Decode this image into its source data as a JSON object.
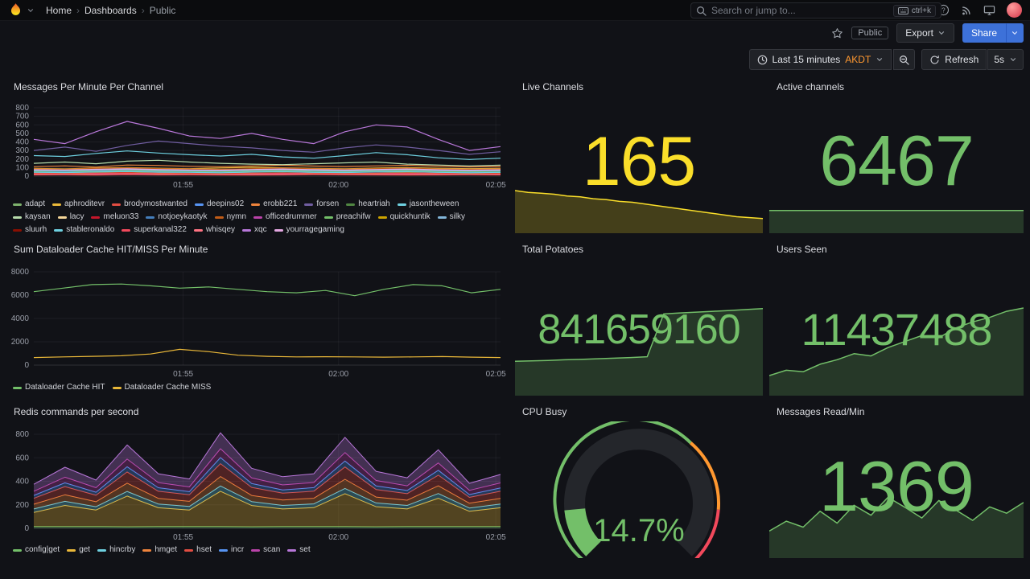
{
  "nav": {
    "breadcrumb": [
      {
        "label": "Home"
      },
      {
        "label": "Dashboards"
      },
      {
        "label": "Public"
      }
    ],
    "search": {
      "placeholder": "Search or jump to...",
      "shortcut": "ctrl+k"
    }
  },
  "actions": {
    "public_tag": "Public",
    "export": "Export",
    "share": "Share"
  },
  "controls": {
    "time_range": "Last 15 minutes",
    "timezone": "AKDT",
    "refresh": "Refresh",
    "interval": "5s"
  },
  "panels": {
    "messages": {
      "title": "Messages Per Minute Per Channel"
    },
    "live_channels": {
      "title": "Live Channels",
      "value": "165",
      "color": "#FADE2A"
    },
    "active_channels": {
      "title": "Active channels",
      "value": "6467",
      "color": "#73BF69"
    },
    "dataloader": {
      "title": "Sum Dataloader Cache HIT/MISS Per Minute"
    },
    "total_potatoes": {
      "title": "Total Potatoes",
      "value": "841659160",
      "color": "#73BF69"
    },
    "users_seen": {
      "title": "Users Seen",
      "value": "11437488",
      "color": "#73BF69"
    },
    "redis": {
      "title": "Redis commands per second"
    },
    "cpu_busy": {
      "title": "CPU Busy",
      "value": "14.7%",
      "color": "#73BF69"
    },
    "messages_read": {
      "title": "Messages Read/Min",
      "value": "1369",
      "color": "#73BF69"
    }
  },
  "chart_data": {
    "messages": {
      "type": "line",
      "ylim": [
        0,
        800
      ],
      "yticks": [
        0,
        100,
        200,
        300,
        400,
        500,
        600,
        700,
        800
      ],
      "xticks": [
        {
          "label": "01:55",
          "f": 0.32
        },
        {
          "label": "02:00",
          "f": 0.653
        },
        {
          "label": "02:05",
          "f": 0.99
        }
      ],
      "series": [
        {
          "name": "adapt",
          "color": "#7EB26D",
          "values": [
            40,
            45,
            38,
            50,
            42,
            48,
            44,
            40,
            36,
            42,
            46,
            50,
            44,
            40,
            38,
            42
          ]
        },
        {
          "name": "aphroditevr",
          "color": "#EAB839",
          "values": [
            90,
            85,
            95,
            100,
            92,
            88,
            96,
            104,
            98,
            90,
            86,
            94,
            100,
            92,
            88,
            90
          ]
        },
        {
          "name": "brodymostwanted",
          "color": "#E24D42",
          "values": [
            25,
            30,
            22,
            28,
            35,
            30,
            26,
            24,
            28,
            32,
            30,
            26,
            24,
            22,
            26,
            28
          ]
        },
        {
          "name": "deepins02",
          "color": "#5794F2",
          "values": [
            60,
            55,
            65,
            70,
            62,
            58,
            66,
            72,
            64,
            60,
            56,
            62,
            68,
            60,
            58,
            62
          ]
        },
        {
          "name": "erobb221",
          "color": "#EF843C",
          "values": [
            110,
            120,
            105,
            130,
            125,
            115,
            110,
            120,
            128,
            118,
            112,
            120,
            126,
            116,
            108,
            112
          ]
        },
        {
          "name": "forsen",
          "color": "#705DA0",
          "values": [
            300,
            340,
            290,
            360,
            410,
            380,
            350,
            330,
            300,
            280,
            330,
            365,
            340,
            300,
            255,
            285
          ]
        },
        {
          "name": "heartriah",
          "color": "#508642",
          "values": [
            15,
            18,
            14,
            20,
            16,
            18,
            15,
            14,
            16,
            18,
            20,
            17,
            15,
            14,
            16,
            15
          ]
        },
        {
          "name": "jasontheween",
          "color": "#6ED0E0",
          "values": [
            240,
            230,
            265,
            295,
            270,
            250,
            235,
            255,
            225,
            210,
            240,
            275,
            250,
            215,
            195,
            210
          ]
        },
        {
          "name": "kaysan",
          "color": "#B7DBAB",
          "values": [
            150,
            165,
            145,
            175,
            185,
            165,
            150,
            140,
            135,
            145,
            155,
            165,
            140,
            130,
            120,
            128
          ]
        },
        {
          "name": "lacy",
          "color": "#F4D598",
          "values": [
            70,
            75,
            68,
            80,
            74,
            70,
            66,
            72,
            78,
            72,
            68,
            74,
            80,
            72,
            68,
            70
          ]
        },
        {
          "name": "meluon33",
          "color": "#C4162A",
          "values": [
            35,
            32,
            38,
            42,
            36,
            34,
            30,
            36,
            40,
            34,
            32,
            36,
            40,
            34,
            30,
            32
          ]
        },
        {
          "name": "notjoeykaotyk",
          "color": "#447EBC",
          "values": [
            50,
            48,
            54,
            58,
            52,
            48,
            46,
            52,
            56,
            50,
            46,
            52,
            56,
            50,
            46,
            48
          ]
        },
        {
          "name": "nymn",
          "color": "#C15C17",
          "values": [
            85,
            80,
            90,
            95,
            88,
            84,
            80,
            88,
            94,
            86,
            82,
            88,
            92,
            84,
            80,
            84
          ]
        },
        {
          "name": "officedrummer",
          "color": "#BA43A9",
          "values": [
            20,
            22,
            18,
            24,
            20,
            22,
            19,
            18,
            20,
            24,
            22,
            20,
            18,
            20,
            22,
            20
          ]
        },
        {
          "name": "preachifw",
          "color": "#73BF69",
          "values": [
            55,
            60,
            52,
            64,
            58,
            54,
            50,
            58,
            62,
            56,
            52,
            58,
            62,
            54,
            52,
            56
          ]
        },
        {
          "name": "quickhuntik",
          "color": "#CCA300",
          "values": [
            30,
            28,
            34,
            38,
            32,
            28,
            26,
            32,
            36,
            30,
            28,
            32,
            36,
            30,
            26,
            28
          ]
        },
        {
          "name": "silky",
          "color": "#82B5D8",
          "values": [
            65,
            62,
            70,
            74,
            66,
            62,
            60,
            68,
            72,
            64,
            60,
            68,
            72,
            64,
            60,
            64
          ]
        },
        {
          "name": "sluurh",
          "color": "#890F02",
          "values": [
            12,
            14,
            10,
            16,
            12,
            14,
            11,
            10,
            12,
            16,
            14,
            12,
            10,
            12,
            14,
            12
          ]
        },
        {
          "name": "stableronaldo",
          "color": "#6ED0E0",
          "values": [
            45,
            42,
            48,
            54,
            46,
            44,
            40,
            48,
            52,
            44,
            42,
            48,
            52,
            44,
            40,
            44
          ]
        },
        {
          "name": "superkanal322",
          "color": "#F2495C",
          "values": [
            28,
            26,
            32,
            36,
            30,
            26,
            24,
            30,
            34,
            28,
            26,
            30,
            34,
            28,
            24,
            26
          ]
        },
        {
          "name": "whisqey",
          "color": "#FF7383",
          "values": [
            18,
            20,
            16,
            22,
            18,
            20,
            17,
            16,
            18,
            22,
            20,
            18,
            16,
            18,
            20,
            18
          ]
        },
        {
          "name": "xqc",
          "color": "#B877D9",
          "values": [
            430,
            380,
            520,
            640,
            560,
            470,
            440,
            500,
            430,
            380,
            520,
            600,
            575,
            430,
            300,
            345
          ]
        },
        {
          "name": "yourragegaming",
          "color": "#E5A8E2",
          "values": [
            75,
            72,
            80,
            86,
            78,
            72,
            70,
            78,
            84,
            76,
            72,
            78,
            84,
            74,
            70,
            74
          ]
        }
      ]
    },
    "dataloader": {
      "type": "line",
      "ylim": [
        0,
        8000
      ],
      "yticks": [
        0,
        2000,
        4000,
        6000,
        8000
      ],
      "xticks": [
        {
          "label": "01:55",
          "f": 0.32
        },
        {
          "label": "02:00",
          "f": 0.653
        },
        {
          "label": "02:05",
          "f": 0.99
        }
      ],
      "series": [
        {
          "name": "Dataloader Cache HIT",
          "color": "#73BF69",
          "values": [
            6300,
            6600,
            6900,
            6950,
            6800,
            6600,
            6700,
            6500,
            6300,
            6200,
            6400,
            5950,
            6500,
            6900,
            6800,
            6200,
            6500
          ]
        },
        {
          "name": "Dataloader Cache MISS",
          "color": "#EAB839",
          "values": [
            650,
            700,
            750,
            800,
            950,
            1350,
            1150,
            850,
            750,
            700,
            720,
            700,
            680,
            700,
            730,
            680,
            650
          ]
        }
      ]
    },
    "redis": {
      "type": "stacked",
      "ylim": [
        0,
        800
      ],
      "yticks": [
        0,
        200,
        400,
        600,
        800
      ],
      "xticks": [
        {
          "label": "01:55",
          "f": 0.32
        },
        {
          "label": "02:00",
          "f": 0.653
        },
        {
          "label": "02:05",
          "f": 0.99
        }
      ],
      "series": [
        {
          "name": "config|get",
          "color": "#73BF69",
          "values": [
            15,
            15,
            16,
            14,
            15,
            16,
            15,
            14,
            15,
            16,
            15,
            14,
            15,
            16,
            15,
            15
          ]
        },
        {
          "name": "get",
          "color": "#EAB839",
          "values": [
            120,
            180,
            140,
            260,
            160,
            140,
            300,
            180,
            150,
            160,
            280,
            170,
            150,
            240,
            130,
            160
          ]
        },
        {
          "name": "hincrby",
          "color": "#6ED0E0",
          "values": [
            30,
            35,
            28,
            40,
            32,
            30,
            45,
            34,
            30,
            32,
            44,
            32,
            30,
            40,
            28,
            32
          ]
        },
        {
          "name": "hmget",
          "color": "#EF843C",
          "values": [
            40,
            55,
            42,
            70,
            48,
            44,
            80,
            52,
            46,
            48,
            78,
            50,
            44,
            66,
            40,
            48
          ]
        },
        {
          "name": "hset",
          "color": "#E24D42",
          "values": [
            50,
            70,
            55,
            95,
            60,
            55,
            110,
            68,
            58,
            60,
            105,
            64,
            56,
            90,
            50,
            60
          ]
        },
        {
          "name": "incr",
          "color": "#5794F2",
          "values": [
            25,
            32,
            26,
            45,
            30,
            27,
            52,
            33,
            28,
            30,
            50,
            31,
            27,
            42,
            24,
            29
          ]
        },
        {
          "name": "scan",
          "color": "#BA43A9",
          "values": [
            35,
            48,
            38,
            65,
            44,
            40,
            75,
            48,
            42,
            44,
            72,
            46,
            40,
            62,
            36,
            42
          ]
        },
        {
          "name": "set",
          "color": "#B877D9",
          "values": [
            60,
            85,
            65,
            120,
            75,
            68,
            135,
            82,
            70,
            74,
            130,
            78,
            68,
            112,
            60,
            72
          ]
        }
      ]
    },
    "live_channels_spark": {
      "type": "area",
      "color": "#FADE2A",
      "ylim": [
        150,
        200
      ],
      "values": [
        196,
        194,
        193,
        192,
        190,
        189,
        187,
        186,
        184,
        183,
        181,
        179,
        177,
        175,
        173,
        171,
        169,
        167,
        166,
        165
      ]
    },
    "active_channels_spark": {
      "type": "area",
      "color": "#73BF69",
      "ylim": [
        0,
        8000
      ],
      "values": [
        6467,
        6467,
        6467,
        6467,
        6467,
        6467,
        6467,
        6467
      ]
    },
    "total_potatoes_spark": {
      "type": "area",
      "color": "#73BF69",
      "ylim": [
        0,
        860000000
      ],
      "values": [
        325000000,
        330000000,
        334000000,
        340000000,
        344000000,
        350000000,
        356000000,
        362000000,
        370000000,
        790000000,
        800000000,
        808000000,
        816000000,
        824000000,
        833000000,
        841659160
      ]
    },
    "users_seen_spark": {
      "type": "area",
      "color": "#73BF69",
      "ylim": [
        0,
        11600000
      ],
      "values": [
        2500000,
        3200000,
        3000000,
        4000000,
        4600000,
        5400000,
        5100000,
        6200000,
        7000000,
        7800000,
        7500000,
        8800000,
        9600000,
        10200000,
        11000000,
        11437488
      ]
    },
    "messages_read_spark": {
      "type": "area",
      "color": "#73BF69",
      "ylim": [
        0,
        1600
      ],
      "values": [
        650,
        900,
        750,
        1150,
        850,
        1300,
        1050,
        1500,
        1250,
        980,
        1420,
        1180,
        920,
        1260,
        1100,
        1369
      ]
    },
    "cpu_gauge": {
      "type": "gauge",
      "value": 14.7,
      "unit": "%",
      "min": 0,
      "max": 100,
      "thresholds": [
        {
          "from": 0,
          "color": "#73BF69"
        },
        {
          "from": 65,
          "color": "#FF9830"
        },
        {
          "from": 85,
          "color": "#F2495C"
        }
      ]
    }
  }
}
